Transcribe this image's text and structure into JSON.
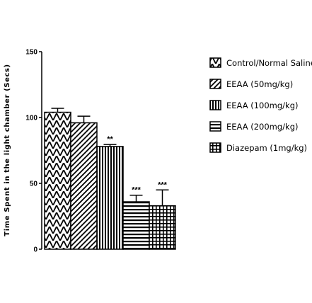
{
  "chart_data": {
    "type": "bar",
    "title": "",
    "xlabel": "",
    "ylabel": "Time Spent in the light chamber (Secs)",
    "ylim": [
      0,
      150
    ],
    "yticks": [
      "0",
      "50",
      "100",
      "150"
    ],
    "grid": false,
    "legend_position": "right",
    "series": [
      {
        "name": "Control/Normal Saline",
        "value": 104,
        "error": 3,
        "significance": "",
        "pattern": "chevron"
      },
      {
        "name": "EEAA (50mg/kg)",
        "value": 96,
        "error": 5,
        "significance": "",
        "pattern": "diagonal"
      },
      {
        "name": "EEAA (100mg/kg)",
        "value": 78,
        "error": 1.5,
        "significance": "**",
        "pattern": "vertical"
      },
      {
        "name": "EEAA (200mg/kg)",
        "value": 36,
        "error": 5,
        "significance": "***",
        "pattern": "horizontal"
      },
      {
        "name": "Diazepam (1mg/kg)",
        "value": 33,
        "error": 12,
        "significance": "***",
        "pattern": "grid"
      }
    ]
  }
}
